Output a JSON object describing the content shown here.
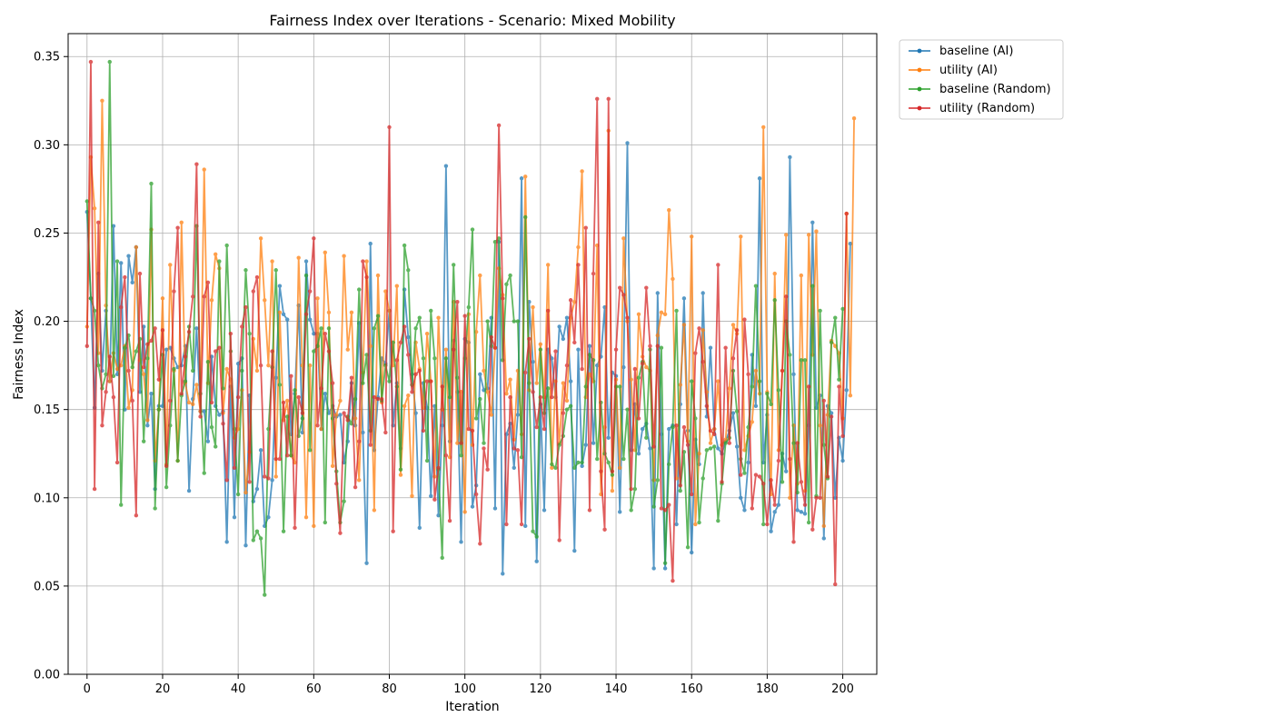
{
  "chart_data": {
    "type": "line",
    "title": "Fairness Index over Iterations - Scenario: Mixed Mobility",
    "xlabel": "Iteration",
    "ylabel": "Fairness Index",
    "xlim": [
      -5,
      209
    ],
    "ylim": [
      0,
      0.363
    ],
    "xticks": [
      0,
      20,
      40,
      60,
      80,
      100,
      120,
      140,
      160,
      180,
      200
    ],
    "yticks": [
      0.0,
      0.05,
      0.1,
      0.15,
      0.2,
      0.25,
      0.3,
      0.35
    ],
    "ytick_labels": [
      "0.00",
      "0.05",
      "0.10",
      "0.15",
      "0.20",
      "0.25",
      "0.30",
      "0.35"
    ],
    "grid": true,
    "legend_position": "outside-top-right",
    "series": [
      {
        "name": "baseline (AI)",
        "color": "#1f77b4",
        "values": [
          0.262,
          0.213,
          0.151,
          0.227,
          0.172,
          0.206,
          0.166,
          0.254,
          0.17,
          0.233,
          0.15,
          0.237,
          0.222,
          0.242,
          0.16,
          0.197,
          0.141,
          0.159,
          0.105,
          0.152,
          0.152,
          0.184,
          0.185,
          0.179,
          0.174,
          0.175,
          0.186,
          0.104,
          0.156,
          0.196,
          0.149,
          0.149,
          0.132,
          0.18,
          0.152,
          0.147,
          0.149,
          0.075,
          0.163,
          0.089,
          0.176,
          0.179,
          0.073,
          0.158,
          0.098,
          0.105,
          0.127,
          0.084,
          0.089,
          0.11,
          0.168,
          0.22,
          0.204,
          0.201,
          0.136,
          0.159,
          0.209,
          0.137,
          0.234,
          0.201,
          0.193,
          0.193,
          0.139,
          0.159,
          0.148,
          0.152,
          0.146,
          0.147,
          0.12,
          0.132,
          0.165,
          0.141,
          0.199,
          0.137,
          0.063,
          0.244,
          0.127,
          0.157,
          0.179,
          0.176,
          0.206,
          0.141,
          0.165,
          0.128,
          0.218,
          0.191,
          0.17,
          0.148,
          0.083,
          0.165,
          0.151,
          0.101,
          0.152,
          0.09,
          0.141,
          0.288,
          0.132,
          0.189,
          0.16,
          0.075,
          0.19,
          0.188,
          0.095,
          0.107,
          0.17,
          0.161,
          0.162,
          0.202,
          0.094,
          0.245,
          0.057,
          0.136,
          0.142,
          0.117,
          0.147,
          0.281,
          0.084,
          0.211,
          0.177,
          0.064,
          0.153,
          0.093,
          0.184,
          0.179,
          0.157,
          0.197,
          0.19,
          0.202,
          0.166,
          0.07,
          0.184,
          0.118,
          0.13,
          0.186,
          0.131,
          0.175,
          0.18,
          0.208,
          0.134,
          0.171,
          0.169,
          0.092,
          0.174,
          0.301,
          0.127,
          0.153,
          0.125,
          0.139,
          0.142,
          0.128,
          0.06,
          0.216,
          0.136,
          0.06,
          0.139,
          0.141,
          0.085,
          0.153,
          0.213,
          0.138,
          0.069,
          0.133,
          0.119,
          0.216,
          0.146,
          0.185,
          0.139,
          0.128,
          0.125,
          0.132,
          0.138,
          0.148,
          0.129,
          0.1,
          0.093,
          0.12,
          0.181,
          0.152,
          0.281,
          0.12,
          0.147,
          0.081,
          0.092,
          0.096,
          0.125,
          0.115,
          0.293,
          0.17,
          0.093,
          0.092,
          0.091,
          0.141,
          0.256,
          0.151,
          0.158,
          0.077,
          0.152,
          0.148,
          0.1,
          0.134,
          0.121,
          0.161,
          0.244
        ]
      },
      {
        "name": "utility (AI)",
        "color": "#ff7f0e",
        "values": [
          0.197,
          0.293,
          0.264,
          0.182,
          0.325,
          0.209,
          0.166,
          0.182,
          0.173,
          0.175,
          0.186,
          0.151,
          0.161,
          0.242,
          0.178,
          0.17,
          0.144,
          0.252,
          0.121,
          0.15,
          0.213,
          0.119,
          0.232,
          0.172,
          0.121,
          0.256,
          0.165,
          0.154,
          0.153,
          0.164,
          0.149,
          0.286,
          0.165,
          0.212,
          0.238,
          0.23,
          0.148,
          0.173,
          0.167,
          0.134,
          0.139,
          0.161,
          0.103,
          0.126,
          0.19,
          0.172,
          0.247,
          0.212,
          0.175,
          0.234,
          0.112,
          0.205,
          0.144,
          0.155,
          0.124,
          0.12,
          0.236,
          0.175,
          0.089,
          0.175,
          0.084,
          0.213,
          0.139,
          0.239,
          0.205,
          0.118,
          0.147,
          0.155,
          0.237,
          0.184,
          0.205,
          0.145,
          0.11,
          0.171,
          0.234,
          0.186,
          0.093,
          0.226,
          0.154,
          0.217,
          0.206,
          0.175,
          0.22,
          0.113,
          0.152,
          0.158,
          0.101,
          0.188,
          0.173,
          0.151,
          0.193,
          0.166,
          0.112,
          0.202,
          0.15,
          0.184,
          0.123,
          0.211,
          0.131,
          0.16,
          0.092,
          0.204,
          0.13,
          0.194,
          0.226,
          0.172,
          0.16,
          0.147,
          0.185,
          0.23,
          0.215,
          0.159,
          0.167,
          0.133,
          0.172,
          0.136,
          0.282,
          0.161,
          0.208,
          0.165,
          0.187,
          0.157,
          0.232,
          0.117,
          0.166,
          0.131,
          0.165,
          0.155,
          0.202,
          0.211,
          0.242,
          0.285,
          0.157,
          0.17,
          0.166,
          0.243,
          0.102,
          0.14,
          0.308,
          0.104,
          0.167,
          0.117,
          0.247,
          0.2,
          0.167,
          0.127,
          0.204,
          0.18,
          0.174,
          0.172,
          0.11,
          0.192,
          0.205,
          0.204,
          0.263,
          0.224,
          0.111,
          0.164,
          0.198,
          0.132,
          0.248,
          0.085,
          0.125,
          0.195,
          0.16,
          0.131,
          0.139,
          0.166,
          0.13,
          0.133,
          0.162,
          0.198,
          0.193,
          0.248,
          0.127,
          0.135,
          0.143,
          0.172,
          0.159,
          0.31,
          0.16,
          0.102,
          0.227,
          0.127,
          0.172,
          0.249,
          0.1,
          0.141,
          0.108,
          0.226,
          0.104,
          0.249,
          0.181,
          0.251,
          0.141,
          0.084,
          0.147,
          0.189,
          0.186,
          0.182,
          0.145,
          0.261,
          0.158,
          0.315
        ]
      },
      {
        "name": "baseline (Random)",
        "color": "#2ca02c",
        "values": [
          0.268,
          0.213,
          0.206,
          0.175,
          0.162,
          0.17,
          0.347,
          0.169,
          0.234,
          0.096,
          0.185,
          0.192,
          0.174,
          0.183,
          0.19,
          0.132,
          0.179,
          0.278,
          0.094,
          0.15,
          0.181,
          0.106,
          0.141,
          0.173,
          0.121,
          0.158,
          0.166,
          0.197,
          0.172,
          0.254,
          0.159,
          0.114,
          0.177,
          0.14,
          0.129,
          0.234,
          0.162,
          0.243,
          0.183,
          0.139,
          0.102,
          0.172,
          0.229,
          0.193,
          0.076,
          0.081,
          0.077,
          0.045,
          0.139,
          0.174,
          0.229,
          0.164,
          0.081,
          0.146,
          0.124,
          0.161,
          0.135,
          0.145,
          0.226,
          0.127,
          0.183,
          0.186,
          0.196,
          0.086,
          0.196,
          0.145,
          0.115,
          0.086,
          0.098,
          0.146,
          0.142,
          0.156,
          0.218,
          0.165,
          0.181,
          0.138,
          0.196,
          0.203,
          0.155,
          0.175,
          0.166,
          0.188,
          0.163,
          0.116,
          0.243,
          0.229,
          0.164,
          0.196,
          0.202,
          0.179,
          0.121,
          0.206,
          0.179,
          0.116,
          0.066,
          0.179,
          0.157,
          0.232,
          0.168,
          0.124,
          0.179,
          0.208,
          0.252,
          0.145,
          0.156,
          0.131,
          0.2,
          0.186,
          0.245,
          0.247,
          0.178,
          0.221,
          0.226,
          0.2,
          0.2,
          0.123,
          0.259,
          0.165,
          0.081,
          0.078,
          0.184,
          0.148,
          0.162,
          0.119,
          0.117,
          0.13,
          0.135,
          0.15,
          0.152,
          0.117,
          0.12,
          0.12,
          0.163,
          0.181,
          0.178,
          0.122,
          0.154,
          0.125,
          0.12,
          0.113,
          0.163,
          0.163,
          0.122,
          0.15,
          0.093,
          0.105,
          0.168,
          0.177,
          0.134,
          0.184,
          0.095,
          0.11,
          0.185,
          0.063,
          0.119,
          0.14,
          0.206,
          0.104,
          0.126,
          0.072,
          0.166,
          0.145,
          0.086,
          0.111,
          0.127,
          0.128,
          0.129,
          0.087,
          0.108,
          0.131,
          0.134,
          0.172,
          0.149,
          0.122,
          0.114,
          0.14,
          0.163,
          0.22,
          0.166,
          0.085,
          0.159,
          0.153,
          0.212,
          0.161,
          0.109,
          0.2,
          0.181,
          0.131,
          0.103,
          0.178,
          0.178,
          0.086,
          0.22,
          0.101,
          0.206,
          0.13,
          0.111,
          0.188,
          0.202,
          0.167,
          0.207
        ]
      },
      {
        "name": "utility (Random)",
        "color": "#d62728",
        "values": [
          0.186,
          0.347,
          0.105,
          0.256,
          0.141,
          0.16,
          0.18,
          0.157,
          0.12,
          0.208,
          0.225,
          0.172,
          0.155,
          0.09,
          0.227,
          0.174,
          0.187,
          0.189,
          0.196,
          0.167,
          0.195,
          0.118,
          0.155,
          0.217,
          0.253,
          0.159,
          0.18,
          0.194,
          0.214,
          0.289,
          0.146,
          0.214,
          0.222,
          0.154,
          0.183,
          0.185,
          0.142,
          0.11,
          0.193,
          0.117,
          0.157,
          0.197,
          0.208,
          0.109,
          0.217,
          0.225,
          0.175,
          0.112,
          0.111,
          0.183,
          0.122,
          0.122,
          0.154,
          0.124,
          0.169,
          0.083,
          0.157,
          0.148,
          0.204,
          0.217,
          0.247,
          0.141,
          0.162,
          0.193,
          0.183,
          0.165,
          0.108,
          0.08,
          0.148,
          0.144,
          0.168,
          0.106,
          0.132,
          0.234,
          0.225,
          0.13,
          0.157,
          0.156,
          0.156,
          0.137,
          0.31,
          0.081,
          0.178,
          0.188,
          0.197,
          0.181,
          0.16,
          0.17,
          0.172,
          0.138,
          0.166,
          0.166,
          0.099,
          0.117,
          0.163,
          0.124,
          0.087,
          0.184,
          0.211,
          0.131,
          0.203,
          0.139,
          0.138,
          0.102,
          0.074,
          0.128,
          0.116,
          0.191,
          0.185,
          0.311,
          0.213,
          0.085,
          0.157,
          0.128,
          0.127,
          0.085,
          0.171,
          0.19,
          0.16,
          0.14,
          0.157,
          0.139,
          0.206,
          0.157,
          0.183,
          0.076,
          0.148,
          0.175,
          0.212,
          0.188,
          0.232,
          0.173,
          0.253,
          0.093,
          0.227,
          0.326,
          0.115,
          0.082,
          0.326,
          0.115,
          0.184,
          0.219,
          0.215,
          0.202,
          0.105,
          0.173,
          0.145,
          0.176,
          0.219,
          0.186,
          0.129,
          0.186,
          0.094,
          0.093,
          0.096,
          0.053,
          0.141,
          0.107,
          0.14,
          0.13,
          0.102,
          0.182,
          0.196,
          0.177,
          0.152,
          0.138,
          0.136,
          0.232,
          0.109,
          0.185,
          0.131,
          0.179,
          0.195,
          0.113,
          0.201,
          0.17,
          0.094,
          0.113,
          0.112,
          0.108,
          0.085,
          0.11,
          0.096,
          0.121,
          0.172,
          0.214,
          0.122,
          0.075,
          0.131,
          0.109,
          0.096,
          0.163,
          0.082,
          0.1,
          0.1,
          0.155,
          0.112,
          0.146,
          0.051,
          0.163,
          0.135,
          0.261
        ]
      }
    ]
  }
}
